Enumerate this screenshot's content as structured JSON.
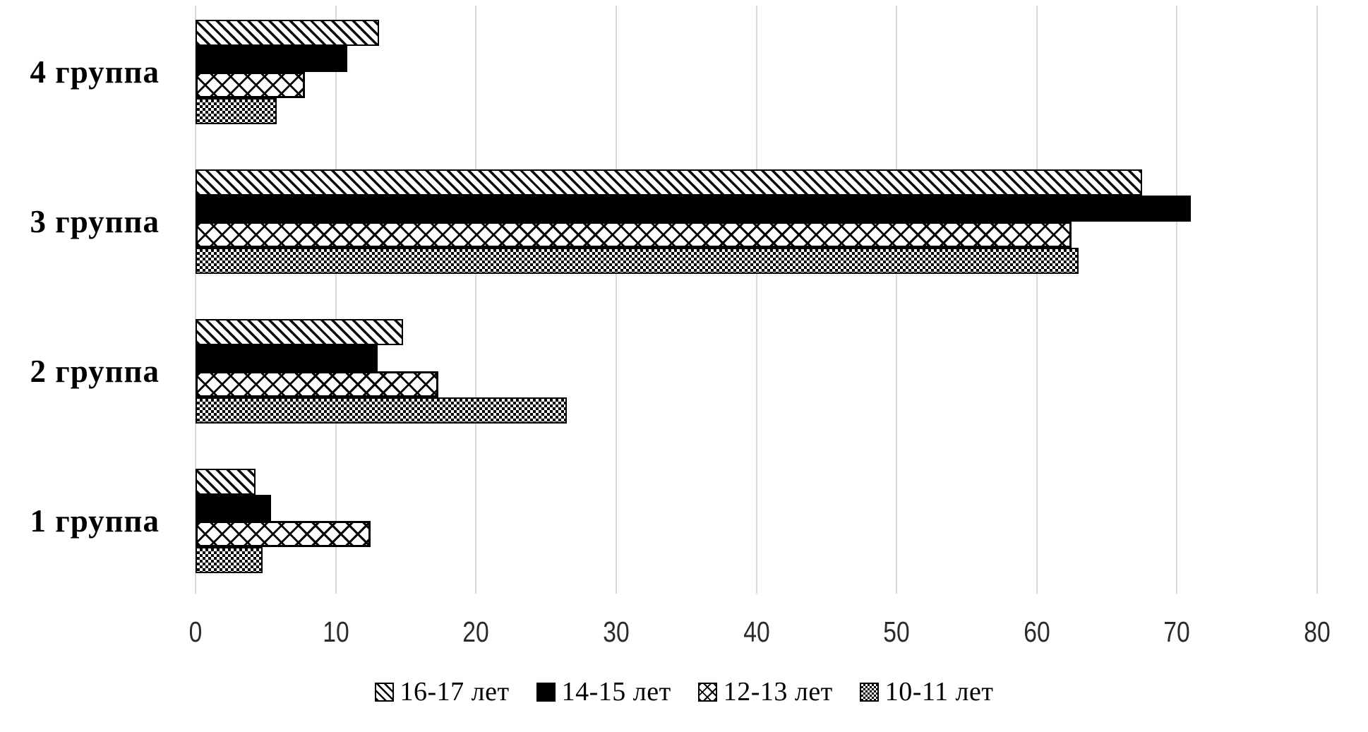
{
  "chart_data": {
    "type": "bar",
    "orientation": "horizontal",
    "title": "",
    "categories": [
      "4 группа",
      "3 группа",
      "2 группа",
      "1 группа"
    ],
    "series": [
      {
        "name": "16-17 лет",
        "pattern": "diagonal-hatch",
        "values": [
          13.1,
          67.5,
          14.8,
          4.3
        ]
      },
      {
        "name": "14-15 лет",
        "pattern": "solid-black",
        "values": [
          10.8,
          71.0,
          13.0,
          5.4
        ]
      },
      {
        "name": "12-13 лет",
        "pattern": "cross-hatch",
        "values": [
          7.8,
          62.5,
          17.3,
          12.5
        ]
      },
      {
        "name": "10-11 лет",
        "pattern": "fine-checker",
        "values": [
          5.8,
          63.0,
          26.5,
          4.8
        ]
      }
    ],
    "x_axis": {
      "min": 0,
      "max": 80,
      "tick_step": 10,
      "ticks": [
        0,
        10,
        20,
        30,
        40,
        50,
        60,
        70,
        80
      ]
    },
    "y_axis_label": "",
    "x_axis_label": "",
    "grid": "vertical",
    "legend_position": "bottom",
    "colors": {
      "bar_fill": "#000000",
      "bar_background": "#ffffff",
      "gridline": "#d9d9d9",
      "text": "#111111"
    }
  }
}
